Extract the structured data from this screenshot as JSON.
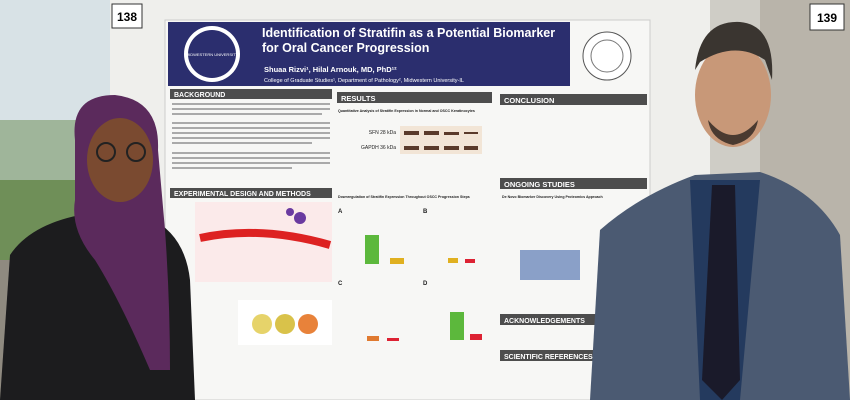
{
  "signs": [
    "138",
    "139"
  ],
  "poster": {
    "title": "Identification of Stratifin as a Potential Biomarker for Oral Cancer Progression",
    "authors": "Shuaa Rizvi¹, Hilal Arnouk, MD, PhD¹²",
    "affiliation": "College of Graduate Studies¹, Department of Pathology², Midwestern University-IL",
    "logo": "MIDWESTERN UNIVERSITY",
    "sections": [
      "BACKGROUND",
      "EXPERIMENTAL DESIGN AND METHODS",
      "RESULTS",
      "CONCLUSION",
      "ONGOING STUDIES",
      "ACKNOWLEDGEMENTS",
      "SCIENTIFIC REFERENCES"
    ],
    "subheads": [
      "Quantitative Analysis of Stratifin Expression in Normal and OSCC Keratinocytes",
      "Downregulation of Stratifin Expression Throughout OSCC Progression Steps",
      "De Novo Biomarker Discovery Using Proteomics Approach"
    ],
    "blot_labels": [
      "SFN 28 kDa",
      "GAPDH 36 kDa"
    ],
    "panels": [
      "A",
      "B",
      "C",
      "D"
    ]
  }
}
